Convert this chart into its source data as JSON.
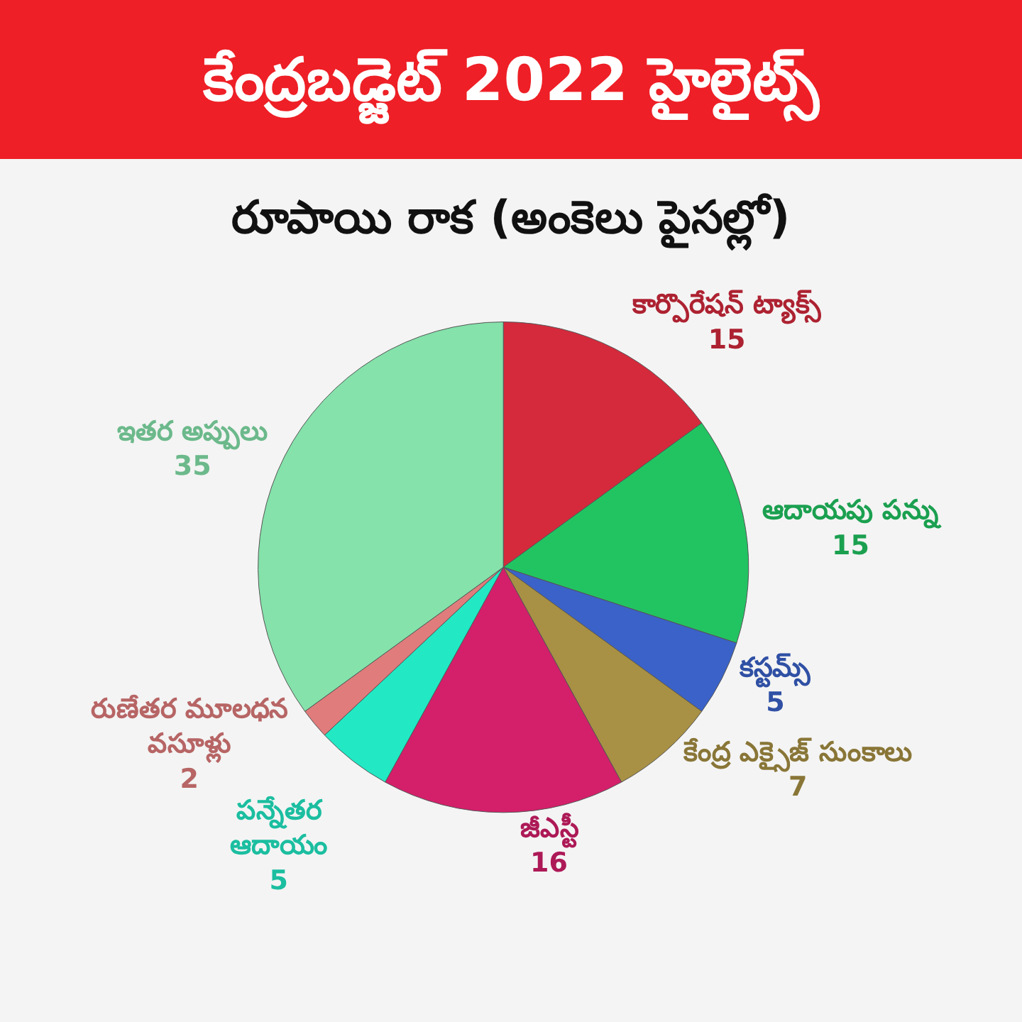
{
  "chart_data": {
    "type": "pie",
    "title": "కేంద్రబడ్జెట్ 2022 హైలైట్స్",
    "subtitle": "రూపాయి రాక (అంకెలు పైసల్లో)",
    "categories": [
      "కార్పొరేషన్ ట్యాక్స్",
      "ఆదాయపు పన్ను",
      "కస్టమ్స్",
      "కేంద్ర ఎక్సైజ్ సుంకాలు",
      "జీఎస్టీ",
      "పన్నేతర ఆదాయం",
      "రుణేతర మూలధన వసూళ్లు",
      "ఇతర అప్పులు"
    ],
    "values": [
      15,
      15,
      5,
      7,
      16,
      5,
      2,
      35
    ],
    "colors": [
      "#d42a3c",
      "#22c462",
      "#3a62c8",
      "#a89044",
      "#d41f6a",
      "#22e8c4",
      "#e07c7c",
      "#84e2aa"
    ],
    "data_labels": true
  }
}
